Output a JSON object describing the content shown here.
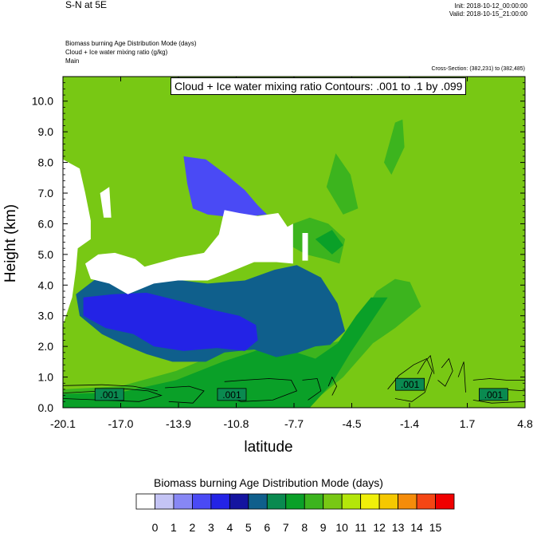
{
  "header": {
    "top_left": "S-N at 5E",
    "init": "Init: 2018-10-12_00:00:00",
    "valid": "Valid: 2018-10-15_21:00:00",
    "field_lines": [
      "Biomass burning Age Distribution Mode   (days)",
      "Cloud + Ice water mixing ratio   (g/kg)",
      "Main"
    ],
    "cross_section": "Cross-Section: (382,231) to (382,485)"
  },
  "chart_data": {
    "type": "heatmap",
    "title": "Cloud + Ice water mixing ratio Contours: .001 to .1 by .099",
    "xlabel": "latitude",
    "ylabel": "Height (km)",
    "x_ticks": [
      "-20.1",
      "-17.0",
      "-13.9",
      "-10.8",
      "-7.7",
      "-4.5",
      "-1.4",
      "1.7",
      "4.8"
    ],
    "x_range": [
      -20.1,
      4.8
    ],
    "y_ticks": [
      "0.0",
      "1.0",
      "2.0",
      "3.0",
      "4.0",
      "5.0",
      "6.0",
      "7.0",
      "8.0",
      "9.0",
      "10.0"
    ],
    "y_range": [
      0,
      10.8
    ],
    "background_value": 10.5,
    "regions": [
      {
        "level": 9,
        "points": [
          [
            -20.1,
            0.6
          ],
          [
            -17,
            0.7
          ],
          [
            -14,
            1.2
          ],
          [
            -12,
            1.7
          ],
          [
            -10,
            2.1
          ],
          [
            -8.5,
            2.3
          ],
          [
            -6.5,
            2.0
          ],
          [
            -5,
            2.2
          ],
          [
            -4,
            3.0
          ],
          [
            -3.2,
            3.8
          ],
          [
            -2.2,
            4.2
          ],
          [
            -1.4,
            4.1
          ],
          [
            -0.8,
            3.3
          ],
          [
            -2.2,
            2.6
          ],
          [
            -3.4,
            2.1
          ],
          [
            -5,
            1.0
          ],
          [
            -6,
            0.5
          ],
          [
            -7,
            0
          ],
          [
            -20.1,
            0
          ]
        ]
      },
      {
        "level": 9,
        "points": [
          [
            -7.9,
            5.3
          ],
          [
            -7.0,
            5.0
          ],
          [
            -6.0,
            4.85
          ],
          [
            -5.2,
            4.7
          ],
          [
            -4.9,
            5.5
          ],
          [
            -5.8,
            6.0
          ],
          [
            -6.8,
            6.2
          ],
          [
            -7.7,
            6.0
          ]
        ]
      },
      {
        "level": 9,
        "points": [
          [
            -5.9,
            7.2
          ],
          [
            -5.0,
            6.3
          ],
          [
            -4.2,
            6.5
          ],
          [
            -4.6,
            7.6
          ],
          [
            -5.4,
            8.3
          ]
        ]
      },
      {
        "level": 9,
        "points": [
          [
            -2.8,
            8.0
          ],
          [
            -2.2,
            9.3
          ],
          [
            -1.8,
            9.4
          ],
          [
            -1.7,
            8.5
          ],
          [
            -2.4,
            7.6
          ]
        ]
      },
      {
        "level": 8,
        "points": [
          [
            -20.1,
            0.45
          ],
          [
            -17,
            0.5
          ],
          [
            -14,
            0.9
          ],
          [
            -11.5,
            1.5
          ],
          [
            -9.5,
            1.9
          ],
          [
            -8,
            1.9
          ],
          [
            -6.5,
            1.6
          ],
          [
            -5.3,
            2.1
          ],
          [
            -4.3,
            3.0
          ],
          [
            -3.5,
            3.6
          ],
          [
            -2.6,
            3.6
          ],
          [
            -3.6,
            2.7
          ],
          [
            -4.6,
            1.8
          ],
          [
            -5.6,
            0.8
          ],
          [
            -6.8,
            0
          ],
          [
            -20.1,
            0
          ]
        ]
      },
      {
        "level": 8,
        "points": [
          [
            -6.5,
            5.5
          ],
          [
            -5.6,
            5.0
          ],
          [
            -5.0,
            5.3
          ],
          [
            -5.6,
            5.8
          ]
        ]
      },
      {
        "level": 6,
        "points": [
          [
            -19.4,
            3.7
          ],
          [
            -17.9,
            4.4
          ],
          [
            -16.3,
            4.55
          ],
          [
            -15.6,
            4.4
          ],
          [
            -14.3,
            4.2
          ],
          [
            -12.3,
            4.05
          ],
          [
            -10.3,
            4.15
          ],
          [
            -8.7,
            4.5
          ],
          [
            -7.5,
            4.65
          ],
          [
            -6.2,
            4.25
          ],
          [
            -5.3,
            3.4
          ],
          [
            -4.9,
            2.5
          ],
          [
            -5.7,
            2.05
          ],
          [
            -6.5,
            2.0
          ],
          [
            -7.4,
            1.8
          ],
          [
            -8.6,
            1.65
          ],
          [
            -9.8,
            1.9
          ],
          [
            -11.4,
            1.8
          ],
          [
            -12.4,
            1.5
          ],
          [
            -14.2,
            1.5
          ],
          [
            -15.6,
            1.75
          ],
          [
            -16.8,
            2.05
          ],
          [
            -18.0,
            2.4
          ],
          [
            -19.2,
            3.0
          ]
        ]
      },
      {
        "level": 4,
        "points": [
          [
            -19.0,
            3.6
          ],
          [
            -17.4,
            3.7
          ],
          [
            -15.6,
            3.75
          ],
          [
            -13.6,
            3.45
          ],
          [
            -12.1,
            3.2
          ],
          [
            -10.6,
            3.0
          ],
          [
            -9.7,
            2.7
          ],
          [
            -9.6,
            2.2
          ],
          [
            -10.3,
            1.85
          ],
          [
            -11.8,
            1.95
          ],
          [
            -13.6,
            1.85
          ],
          [
            -15.2,
            2.0
          ],
          [
            -16.3,
            2.4
          ],
          [
            -17.8,
            2.6
          ],
          [
            -19.0,
            3.0
          ]
        ]
      },
      {
        "level": 3,
        "points": [
          [
            -13.6,
            8.2
          ],
          [
            -12.4,
            8.1
          ],
          [
            -11.3,
            7.6
          ],
          [
            -10.3,
            7.1
          ],
          [
            -9.6,
            6.6
          ],
          [
            -9.1,
            6.3
          ],
          [
            -10.8,
            6.2
          ],
          [
            -12.3,
            6.3
          ],
          [
            -13.1,
            6.5
          ],
          [
            -13.4,
            7.3
          ]
        ]
      },
      {
        "level": 0,
        "points": [
          [
            -20.1,
            8.1
          ],
          [
            -19.2,
            7.8
          ],
          [
            -18.9,
            7.0
          ],
          [
            -18.6,
            6.1
          ],
          [
            -18.6,
            5.5
          ],
          [
            -19.3,
            5.2
          ],
          [
            -19.4,
            4.5
          ],
          [
            -19.6,
            3.6
          ],
          [
            -20.1,
            2.7
          ]
        ]
      },
      {
        "level": 0,
        "points": [
          [
            -18.9,
            4.7
          ],
          [
            -18.2,
            5.0
          ],
          [
            -17.3,
            5.05
          ],
          [
            -16.2,
            4.85
          ],
          [
            -15.7,
            4.6
          ],
          [
            -13.9,
            4.9
          ],
          [
            -12.5,
            5.05
          ],
          [
            -11.7,
            5.65
          ],
          [
            -11.4,
            6.45
          ],
          [
            -10.6,
            6.35
          ],
          [
            -9.6,
            6.25
          ],
          [
            -8.5,
            6.35
          ],
          [
            -8.0,
            5.9
          ],
          [
            -7.7,
            6.0
          ],
          [
            -7.7,
            4.7
          ],
          [
            -8.6,
            4.75
          ],
          [
            -9.8,
            4.75
          ],
          [
            -11.4,
            4.35
          ],
          [
            -12.3,
            4.15
          ],
          [
            -13.9,
            4.15
          ],
          [
            -15.2,
            4.05
          ],
          [
            -16.6,
            3.7
          ],
          [
            -17.6,
            4.05
          ],
          [
            -18.6,
            4.2
          ]
        ]
      },
      {
        "level": 0,
        "points": [
          [
            -18.1,
            7.0
          ],
          [
            -17.6,
            7.2
          ],
          [
            -17.5,
            6.2
          ],
          [
            -17.9,
            6.2
          ]
        ]
      },
      {
        "level": 0,
        "points": [
          [
            -7.2,
            5.7
          ],
          [
            -6.9,
            5.7
          ],
          [
            -6.9,
            4.8
          ],
          [
            -7.2,
            4.8
          ]
        ]
      }
    ],
    "contour_levels": [
      0.001,
      0.1
    ],
    "contour_labels": [
      ".001",
      ".001",
      ".001",
      ".001"
    ],
    "colorbar": {
      "title": "Biomass burning Age Distribution Mode  (days)",
      "labels": [
        "0",
        "1",
        "2",
        "3",
        "4",
        "5",
        "6",
        "7",
        "8",
        "9",
        "10",
        "11",
        "12",
        "13",
        "14",
        "15"
      ],
      "colors": [
        "#ffffff",
        "#c4c4f5",
        "#8787f5",
        "#4a4af5",
        "#2323e6",
        "#1414a0",
        "#0f5f8c",
        "#0a8a50",
        "#0aa028",
        "#3cb41e",
        "#78c814",
        "#b4e60a",
        "#f0f00a",
        "#f5c800",
        "#f58c0a",
        "#f54614",
        "#f00000"
      ]
    }
  }
}
